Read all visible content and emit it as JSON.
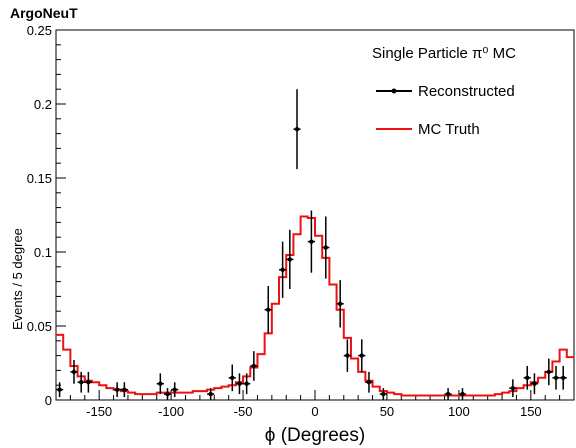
{
  "chart_data": {
    "type": "histogram",
    "header": "ArgoNeuT",
    "legend_title": "Single Particle π⁰ MC",
    "xlabel": "ϕ (Degrees)",
    "ylabel": "Events / 5 degree",
    "xlim": [
      -180,
      180
    ],
    "ylim": [
      0,
      0.25
    ],
    "x_ticks": [
      -150,
      -100,
      -50,
      0,
      50,
      100,
      150
    ],
    "y_ticks": [
      0,
      0.05,
      0.1,
      0.15,
      0.2,
      0.25
    ],
    "y_tick_labels": [
      "0",
      "0.05",
      "0.1",
      "0.15",
      "0.2",
      "0.25"
    ],
    "bin_width": 5,
    "legend_position": "top-right",
    "series": [
      {
        "name": "Reconstructed",
        "style": "points-with-error-bars",
        "color": "#000000",
        "x": [
          -177.5,
          -167.5,
          -162.5,
          -157.5,
          -137.5,
          -132.5,
          -107.5,
          -102.5,
          -97.5,
          -72.5,
          -57.5,
          -52.5,
          -47.5,
          -42.5,
          -32.5,
          -22.5,
          -17.5,
          -12.5,
          -2.5,
          7.5,
          17.5,
          22.5,
          32.5,
          37.5,
          47.5,
          92.5,
          102.5,
          137.5,
          147.5,
          152.5,
          162.5,
          167.5,
          172.5
        ],
        "y": [
          0.007,
          0.019,
          0.012,
          0.012,
          0.007,
          0.007,
          0.011,
          0.004,
          0.007,
          0.004,
          0.015,
          0.011,
          0.011,
          0.023,
          0.061,
          0.088,
          0.095,
          0.183,
          0.107,
          0.103,
          0.065,
          0.03,
          0.03,
          0.012,
          0.004,
          0.004,
          0.004,
          0.008,
          0.015,
          0.011,
          0.019,
          0.015,
          0.015
        ],
        "err": [
          0.005,
          0.008,
          0.007,
          0.007,
          0.005,
          0.005,
          0.007,
          0.004,
          0.005,
          0.004,
          0.009,
          0.007,
          0.007,
          0.01,
          0.016,
          0.019,
          0.02,
          0.027,
          0.021,
          0.021,
          0.016,
          0.011,
          0.011,
          0.007,
          0.004,
          0.004,
          0.004,
          0.006,
          0.008,
          0.007,
          0.009,
          0.008,
          0.008
        ]
      },
      {
        "name": "MC Truth",
        "style": "step",
        "color": "#ee1111",
        "bin_edges": [
          -180,
          -175,
          -170,
          -165,
          -160,
          -155,
          -150,
          -145,
          -140,
          -135,
          -130,
          -125,
          -120,
          -115,
          -110,
          -105,
          -100,
          -95,
          -90,
          -85,
          -80,
          -75,
          -70,
          -65,
          -60,
          -55,
          -50,
          -45,
          -40,
          -35,
          -30,
          -25,
          -20,
          -15,
          -10,
          -5,
          0,
          5,
          10,
          15,
          20,
          25,
          30,
          35,
          40,
          45,
          50,
          55,
          60,
          65,
          70,
          75,
          80,
          85,
          90,
          95,
          100,
          105,
          110,
          115,
          120,
          125,
          130,
          135,
          140,
          145,
          150,
          155,
          160,
          165,
          170,
          175,
          180
        ],
        "values": [
          0.044,
          0.034,
          0.023,
          0.016,
          0.013,
          0.012,
          0.01,
          0.008,
          0.007,
          0.006,
          0.005,
          0.004,
          0.004,
          0.004,
          0.005,
          0.005,
          0.005,
          0.005,
          0.005,
          0.006,
          0.006,
          0.007,
          0.008,
          0.009,
          0.01,
          0.012,
          0.016,
          0.022,
          0.031,
          0.045,
          0.065,
          0.083,
          0.098,
          0.112,
          0.124,
          0.123,
          0.111,
          0.096,
          0.078,
          0.061,
          0.042,
          0.028,
          0.019,
          0.013,
          0.009,
          0.006,
          0.005,
          0.004,
          0.003,
          0.003,
          0.003,
          0.003,
          0.003,
          0.003,
          0.003,
          0.003,
          0.003,
          0.003,
          0.003,
          0.003,
          0.003,
          0.004,
          0.005,
          0.006,
          0.008,
          0.01,
          0.012,
          0.015,
          0.019,
          0.026,
          0.034,
          0.029
        ]
      }
    ]
  }
}
